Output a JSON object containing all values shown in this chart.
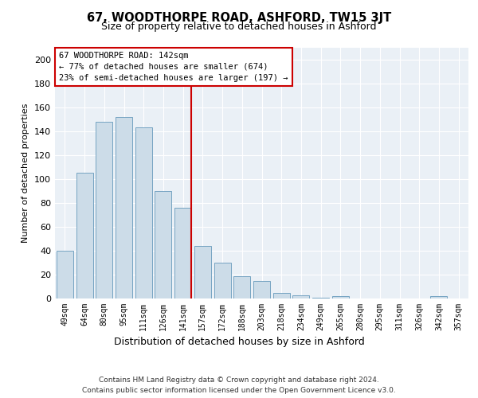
{
  "title": "67, WOODTHORPE ROAD, ASHFORD, TW15 3JT",
  "subtitle": "Size of property relative to detached houses in Ashford",
  "xlabel": "Distribution of detached houses by size in Ashford",
  "ylabel": "Number of detached properties",
  "categories": [
    "49sqm",
    "64sqm",
    "80sqm",
    "95sqm",
    "111sqm",
    "126sqm",
    "141sqm",
    "157sqm",
    "172sqm",
    "188sqm",
    "203sqm",
    "218sqm",
    "234sqm",
    "249sqm",
    "265sqm",
    "280sqm",
    "295sqm",
    "311sqm",
    "326sqm",
    "342sqm",
    "357sqm"
  ],
  "values": [
    40,
    105,
    148,
    152,
    143,
    90,
    76,
    44,
    30,
    19,
    15,
    5,
    3,
    1,
    2,
    0,
    0,
    0,
    0,
    2,
    0
  ],
  "bar_color": "#ccdce8",
  "bar_edge_color": "#6699bb",
  "highlight_index": 6,
  "highlight_line_color": "#cc0000",
  "annotation_text": "67 WOODTHORPE ROAD: 142sqm\n← 77% of detached houses are smaller (674)\n23% of semi-detached houses are larger (197) →",
  "annotation_box_color": "#ffffff",
  "annotation_box_edge_color": "#cc0000",
  "ylim": [
    0,
    210
  ],
  "yticks": [
    0,
    20,
    40,
    60,
    80,
    100,
    120,
    140,
    160,
    180,
    200
  ],
  "background_color": "#eaf0f6",
  "footer_line1": "Contains HM Land Registry data © Crown copyright and database right 2024.",
  "footer_line2": "Contains public sector information licensed under the Open Government Licence v3.0."
}
